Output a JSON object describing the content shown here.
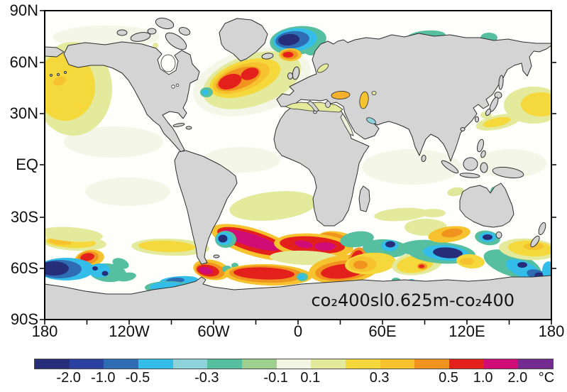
{
  "figure": {
    "annotation": "co₂400sl0.625m-co₂400"
  },
  "axes": {
    "lat_labels": [
      "90N",
      "60N",
      "30N",
      "EQ",
      "30S",
      "60S",
      "90S"
    ],
    "lon_labels": [
      "180",
      "120W",
      "60W",
      "0",
      "60E",
      "120E",
      "180"
    ]
  },
  "colorbar": {
    "unit": "°C",
    "colors": [
      "#272e79",
      "#2a41a0",
      "#2e6db4",
      "#33bde8",
      "#8ed2da",
      "#55bf9f",
      "#9ed08d",
      "#f2f5e3",
      "#e4ea9b",
      "#f4d83c",
      "#f6c22d",
      "#f0931f",
      "#e3201b",
      "#d00d76",
      "#722b8e"
    ],
    "boundaries": [
      -2.0,
      -1.0,
      -0.5,
      -0.4,
      -0.3,
      -0.2,
      -0.1,
      0.1,
      0.2,
      0.3,
      0.4,
      0.5,
      1.0,
      2.0
    ],
    "ticks": [
      {
        "label": "-2.0",
        "pos": 1
      },
      {
        "label": "-1.0",
        "pos": 2
      },
      {
        "label": "-0.5",
        "pos": 3
      },
      {
        "label": "-0.3",
        "pos": 5
      },
      {
        "label": "-0.1",
        "pos": 7
      },
      {
        "label": "0.1",
        "pos": 8
      },
      {
        "label": "0.3",
        "pos": 10
      },
      {
        "label": "0.5",
        "pos": 12
      },
      {
        "label": "1.0",
        "pos": 13
      },
      {
        "label": "2.0",
        "pos": 14
      }
    ]
  },
  "chart_data": {
    "type": "heatmap",
    "subtype": "filled-contour world map of SST / surface temperature difference",
    "title": "co₂400sl0.625m-co₂400",
    "units": "°C",
    "projection": "equirectangular, centered on 0° longitude",
    "lon_range": [
      "180W",
      "180E"
    ],
    "lat_range": [
      "90S",
      "90N"
    ],
    "lon_ticks": [
      "180",
      "120W",
      "60W",
      "0",
      "60E",
      "120E",
      "180"
    ],
    "lat_ticks": [
      "90N",
      "60N",
      "30N",
      "EQ",
      "30S",
      "60S",
      "90S"
    ],
    "contour_levels": [
      -2.0,
      -1.0,
      -0.5,
      -0.4,
      -0.3,
      -0.2,
      -0.1,
      0.1,
      0.2,
      0.3,
      0.4,
      0.5,
      1.0,
      2.0
    ],
    "land_color": "gray (masked)",
    "features": [
      {
        "region": "Nordic/Greenland Seas ~65-78N, 25W-15E",
        "sign": "cold",
        "peak_value": "< -2.0"
      },
      {
        "region": "Subpolar North Atlantic ~45-60N, 50W-10W",
        "sign": "warm",
        "peak_value": "0.5 to 1.0"
      },
      {
        "region": "South of Iceland ~62N 22W (small spot)",
        "sign": "warm",
        "peak_value": "0.5 to 1.0"
      },
      {
        "region": "Northeast Pacific near date line 30-55N",
        "sign": "warm",
        "peak_value": "0.2 to 0.4"
      },
      {
        "region": "Northwest Pacific east of Japan 30-45N",
        "sign": "warm",
        "peak_value": "0.2 to 0.3"
      },
      {
        "region": "Mediterranean Sea",
        "sign": "warm",
        "peak_value": "0.1 to 0.3"
      },
      {
        "region": "Black Sea and Caspian Sea",
        "sign": "warm",
        "peak_value": "0.3 to 0.5"
      },
      {
        "region": "Siberian Arctic shelf seas",
        "sign": "cold",
        "peak_value": "-0.3 to -0.2"
      },
      {
        "region": "Gulf of St. Lawrence ~47N 60W",
        "sign": "cold",
        "peak_value": "-0.3 to -0.5"
      },
      {
        "region": "Subtropical South Atlantic 20-35S",
        "sign": "warm",
        "peak_value": "0.1 to 0.2"
      },
      {
        "region": "South Atlantic 45-55S, 40W-0",
        "sign": "warm",
        "peak_value": "> 2.0 (magenta/purple core)"
      },
      {
        "region": "Atlantic-Indian sector 55-65S, 30W-30E",
        "sign": "warm",
        "peak_value": "0.5 to 1.0"
      },
      {
        "region": "Southeast Pacific 55-65S near 180-150W",
        "sign": "cold",
        "peak_value": "< -2.0"
      },
      {
        "region": "South Indian Ocean 50-60S, 60-110E",
        "sign": "cold",
        "peak_value": "< -2.0"
      },
      {
        "region": "South of Australia / Tasman 50-60S",
        "sign": "cold",
        "peak_value": "-2.0 to -1.0"
      },
      {
        "region": "Southwest Pacific 55-65S, 150E-170W",
        "sign": "cold",
        "peak_value": "-2.0 to -1.0"
      },
      {
        "region": "Circumpolar band ~45-55S elsewhere",
        "sign": "warm",
        "peak_value": "0.2 to 0.5"
      }
    ]
  }
}
